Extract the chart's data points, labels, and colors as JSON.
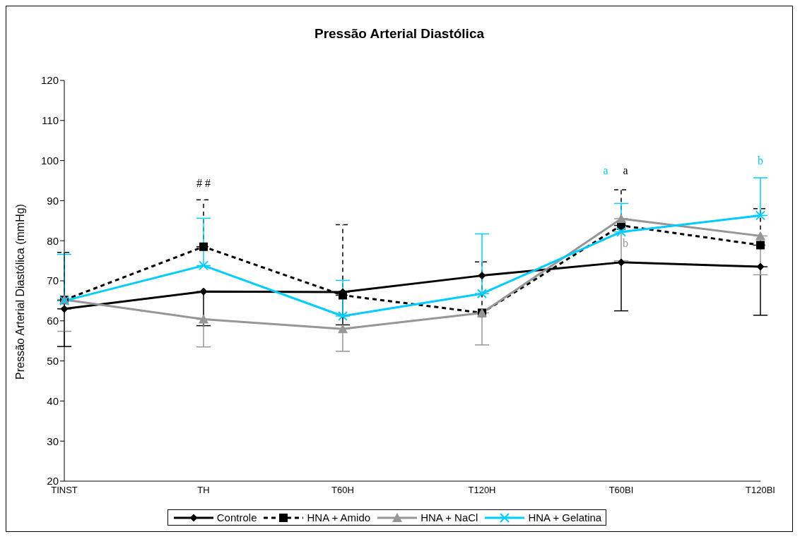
{
  "chart_data": {
    "type": "line",
    "title": "Pressão Arterial Diastólica",
    "ylabel": "Pressão Arterial Diastólica (mmHg)",
    "categories": [
      "TINST",
      "TH",
      "T60H",
      "T120H",
      "T60BI",
      "T120BI"
    ],
    "series": [
      {
        "name": "Controle",
        "color": "#000000",
        "marker": "diamond",
        "line_style": "solid",
        "values": [
          63,
          67.3,
          67.2,
          71.3,
          74.6,
          73.5
        ],
        "errors": [
          [
            53.6,
            63
          ],
          [
            58.8,
            67.3
          ],
          [
            59,
            67.2
          ],
          null,
          [
            62.5,
            74.6
          ],
          [
            61.4,
            73.5
          ]
        ]
      },
      {
        "name": "HNA + Amido",
        "color": "#000000",
        "marker": "square",
        "line_style": "dashed",
        "values": [
          65.2,
          78.5,
          66.4,
          62,
          83.8,
          78.9
        ],
        "errors": [
          [
            65.2,
            77.1
          ],
          [
            78.5,
            90.2
          ],
          [
            66.4,
            84
          ],
          [
            62,
            74.7
          ],
          [
            83.8,
            92.7
          ],
          [
            78.9,
            88
          ]
        ]
      },
      {
        "name": "HNA + NaCl",
        "color": "#969696",
        "marker": "triangle",
        "line_style": "solid",
        "values": [
          65.3,
          60.4,
          58,
          62,
          85.5,
          81.2
        ],
        "errors": [
          [
            57.4,
            65.3
          ],
          [
            53.5,
            60.4
          ],
          [
            52.4,
            58
          ],
          [
            54,
            62
          ],
          [
            75,
            85.5
          ],
          [
            71.5,
            81.2
          ]
        ]
      },
      {
        "name": "HNA + Gelatina",
        "color": "#00ccff",
        "marker": "cross",
        "line_style": "solid",
        "values": [
          65,
          73.8,
          61.2,
          66.8,
          82.2,
          86.3
        ],
        "errors": [
          [
            65,
            76.6
          ],
          [
            73.8,
            85.6
          ],
          [
            61.2,
            70.1
          ],
          [
            66.8,
            81.7
          ],
          [
            82.2,
            89.3
          ],
          [
            86.3,
            95.7
          ]
        ]
      }
    ],
    "ylim": [
      20,
      120
    ],
    "yticks": [
      20,
      30,
      40,
      50,
      60,
      70,
      80,
      90,
      100,
      110,
      120
    ],
    "grid": false,
    "legend": "bottom",
    "annotations": [
      "# #",
      "a",
      "a",
      "b",
      "b"
    ]
  }
}
